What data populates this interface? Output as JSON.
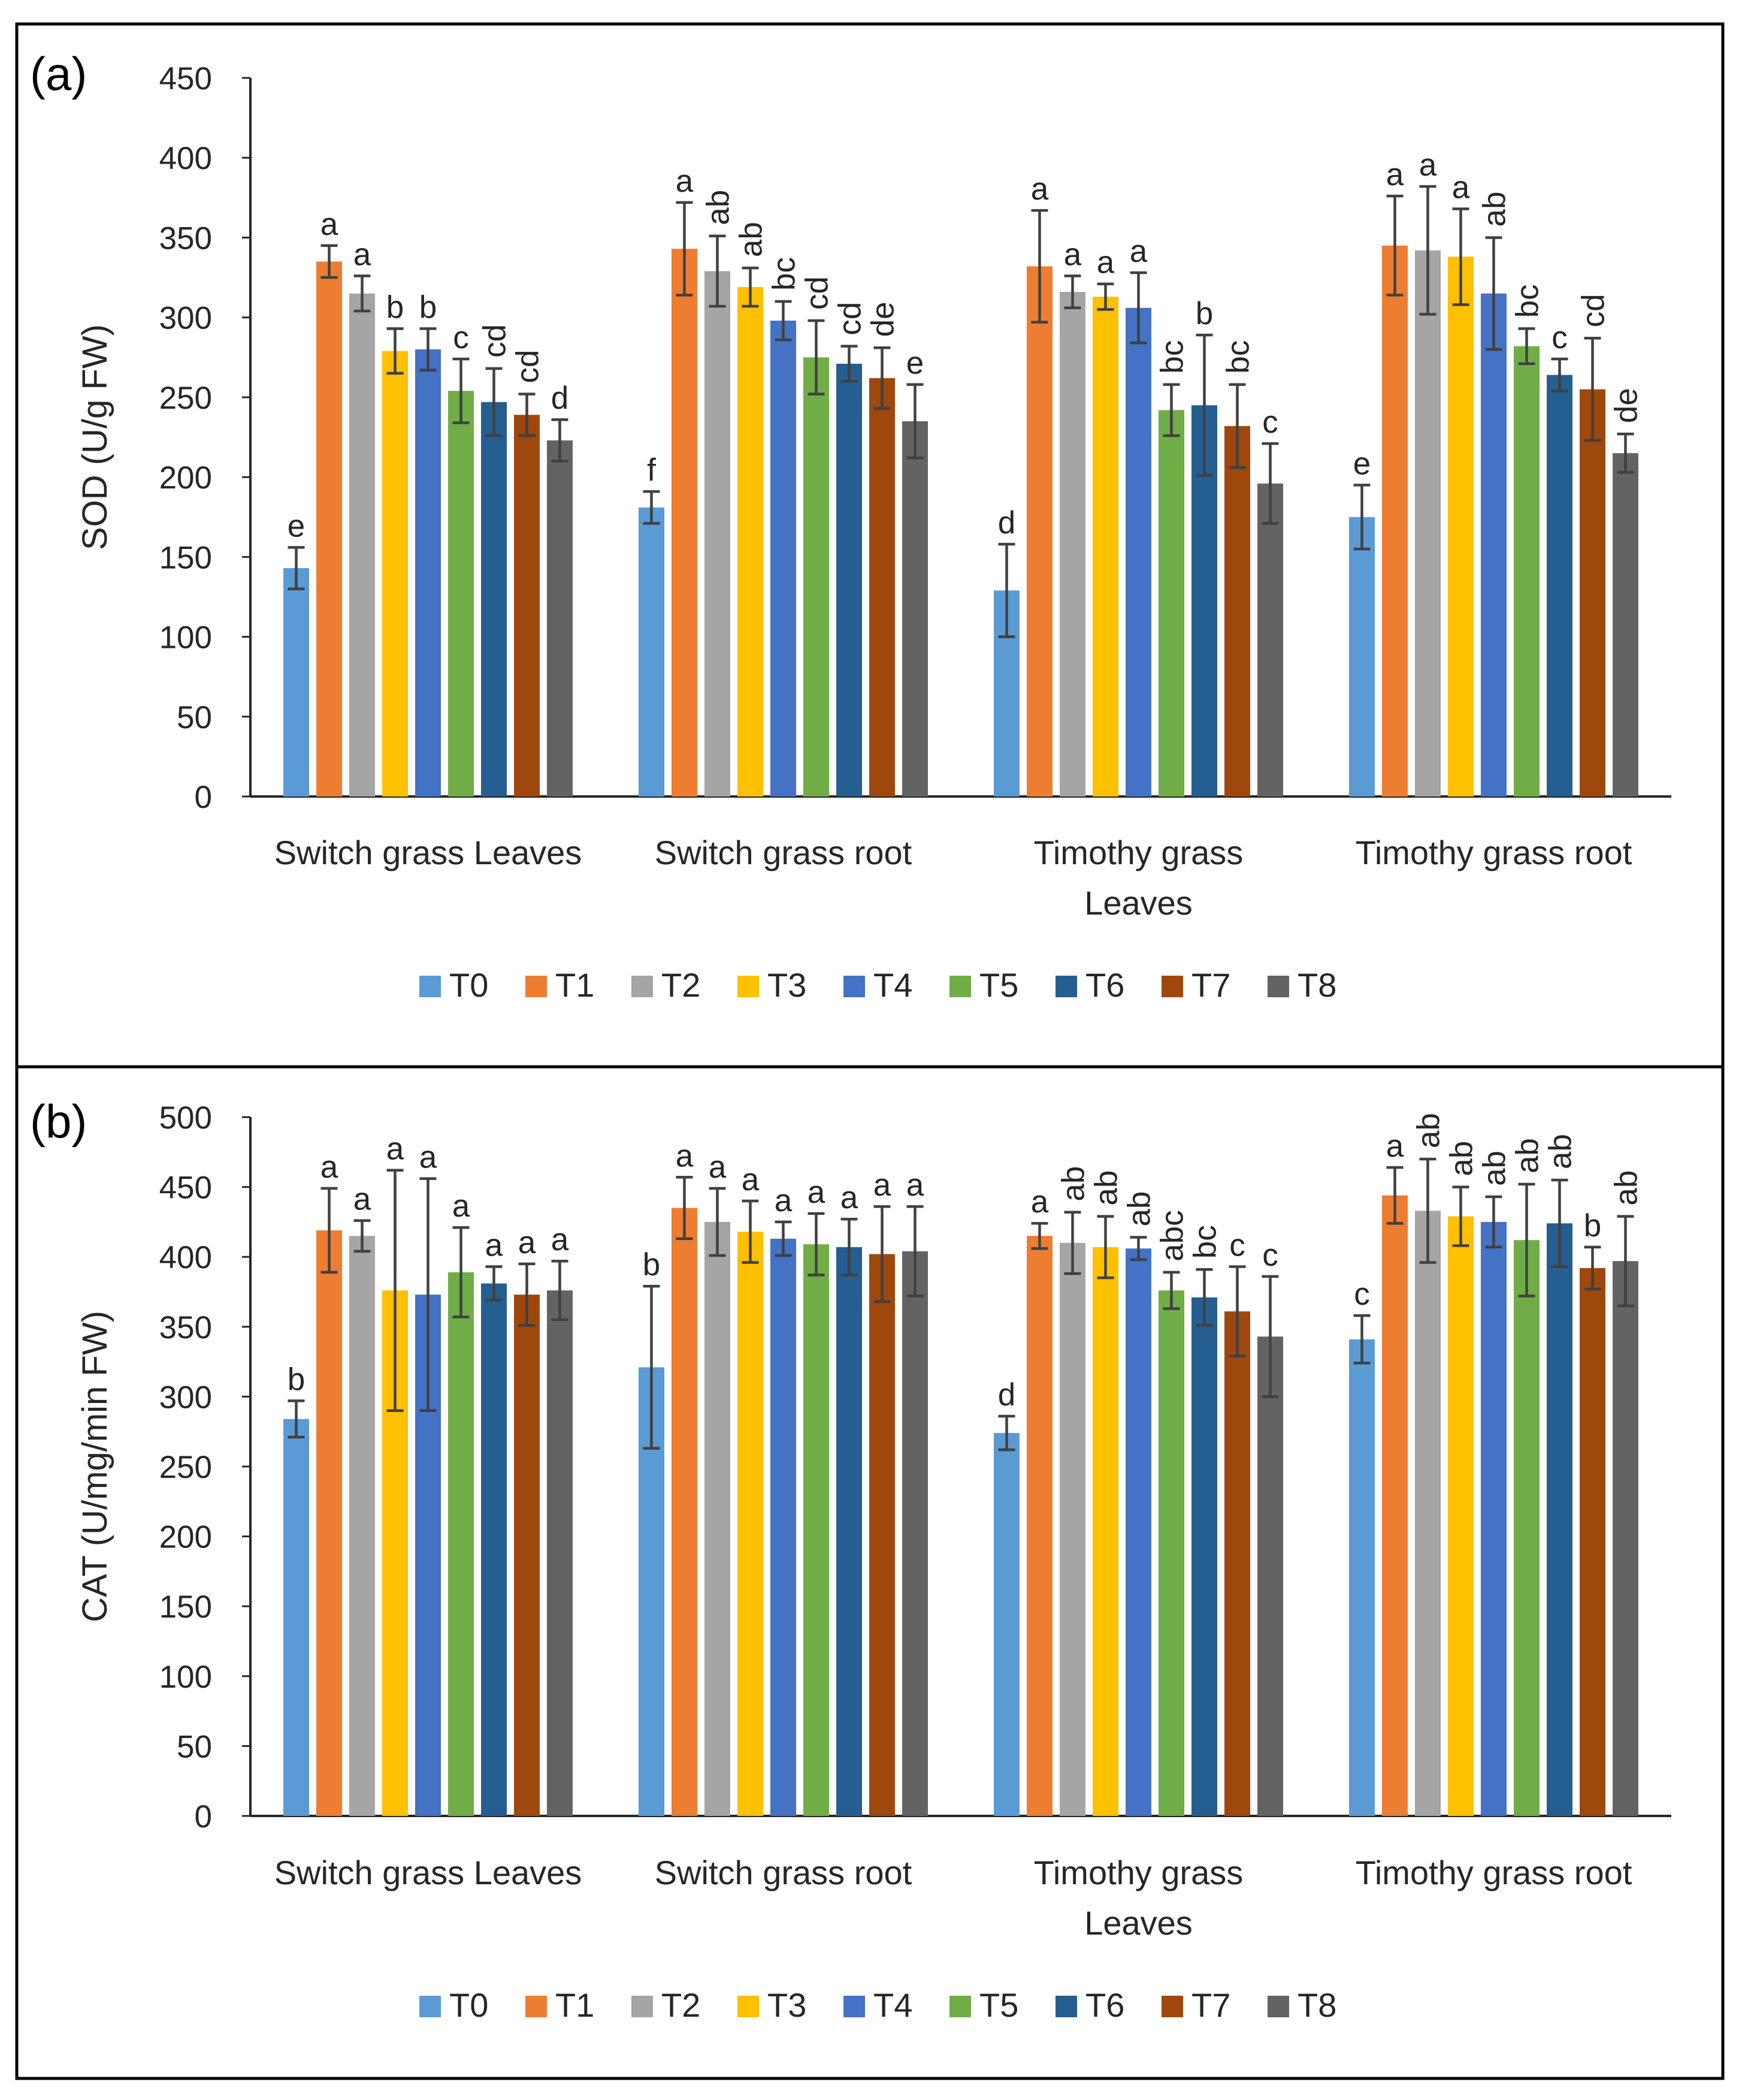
{
  "series_names": [
    "T0",
    "T1",
    "T2",
    "T3",
    "T4",
    "T5",
    "T6",
    "T7",
    "T8"
  ],
  "series_colors": [
    "#5b9bd5",
    "#ed7d31",
    "#a5a5a5",
    "#ffc000",
    "#4472c4",
    "#70ad47",
    "#255e91",
    "#9e480e",
    "#636363"
  ],
  "chart_data": [
    {
      "type": "bar",
      "panel_label": "(a)",
      "ylabel": "SOD (U/g FW)",
      "ylim": [
        0,
        450
      ],
      "yticks": [
        0,
        50,
        100,
        150,
        200,
        250,
        300,
        350,
        400,
        450
      ],
      "categories": [
        [
          "Switch grass Leaves"
        ],
        [
          "Switch grass root"
        ],
        [
          "Timothy grass",
          "Leaves"
        ],
        [
          "Timothy grass root"
        ]
      ],
      "legend_position": "bottom",
      "grid": false,
      "series": [
        {
          "name": "T0",
          "values": [
            143,
            181,
            129,
            175
          ],
          "errors": [
            13,
            10,
            29,
            20
          ],
          "letters": [
            "e",
            "f",
            "d",
            "e"
          ]
        },
        {
          "name": "T1",
          "values": [
            335,
            343,
            332,
            345
          ],
          "errors": [
            10,
            29,
            35,
            31
          ],
          "letters": [
            "a",
            "a",
            "a",
            "a"
          ]
        },
        {
          "name": "T2",
          "values": [
            315,
            329,
            316,
            342
          ],
          "errors": [
            11,
            22,
            10,
            40
          ],
          "letters": [
            "a",
            "ab",
            "a",
            "a"
          ]
        },
        {
          "name": "T3",
          "values": [
            279,
            319,
            313,
            338
          ],
          "errors": [
            14,
            12,
            8,
            30
          ],
          "letters": [
            "b",
            "ab",
            "a",
            "a"
          ]
        },
        {
          "name": "T4",
          "values": [
            280,
            298,
            306,
            315
          ],
          "errors": [
            13,
            12,
            22,
            35
          ],
          "letters": [
            "b",
            "bc",
            "a",
            "ab"
          ]
        },
        {
          "name": "T5",
          "values": [
            254,
            275,
            242,
            282
          ],
          "errors": [
            20,
            23,
            16,
            11
          ],
          "letters": [
            "c",
            "cd",
            "bc",
            "bc"
          ]
        },
        {
          "name": "T6",
          "values": [
            247,
            271,
            245,
            264
          ],
          "errors": [
            21,
            11,
            44,
            10
          ],
          "letters": [
            "cd",
            "cd",
            "b",
            "c"
          ]
        },
        {
          "name": "T7",
          "values": [
            239,
            262,
            232,
            255
          ],
          "errors": [
            13,
            19,
            26,
            32
          ],
          "letters": [
            "cd",
            "de",
            "bc",
            "cd"
          ]
        },
        {
          "name": "T8",
          "values": [
            223,
            235,
            196,
            215
          ],
          "errors": [
            13,
            23,
            25,
            12
          ],
          "letters": [
            "d",
            "e",
            "c",
            "de"
          ]
        }
      ]
    },
    {
      "type": "bar",
      "panel_label": "(b)",
      "ylabel": "CAT (U/mg/min FW)",
      "ylim": [
        0,
        500
      ],
      "yticks": [
        0,
        50,
        100,
        150,
        200,
        250,
        300,
        350,
        400,
        450,
        500
      ],
      "categories": [
        [
          "Switch grass Leaves"
        ],
        [
          "Switch grass root"
        ],
        [
          "Timothy grass",
          "Leaves"
        ],
        [
          "Timothy grass root"
        ]
      ],
      "legend_position": "bottom",
      "grid": false,
      "series": [
        {
          "name": "T0",
          "values": [
            284,
            321,
            274,
            341
          ],
          "errors": [
            13,
            58,
            12,
            17
          ],
          "letters": [
            "b",
            "b",
            "d",
            "c"
          ]
        },
        {
          "name": "T1",
          "values": [
            419,
            435,
            415,
            444
          ],
          "errors": [
            30,
            22,
            9,
            20
          ],
          "letters": [
            "a",
            "a",
            "a",
            "a"
          ]
        },
        {
          "name": "T2",
          "values": [
            415,
            425,
            410,
            433
          ],
          "errors": [
            11,
            24,
            22,
            37
          ],
          "letters": [
            "a",
            "a",
            "ab",
            "ab"
          ]
        },
        {
          "name": "T3",
          "values": [
            376,
            418,
            407,
            429
          ],
          "errors": [
            86,
            22,
            22,
            21
          ],
          "letters": [
            "a",
            "a",
            "ab",
            "ab"
          ]
        },
        {
          "name": "T4",
          "values": [
            373,
            413,
            406,
            425
          ],
          "errors": [
            83,
            12,
            8,
            18
          ],
          "letters": [
            "a",
            "a",
            "ab",
            "ab"
          ]
        },
        {
          "name": "T5",
          "values": [
            389,
            409,
            376,
            412
          ],
          "errors": [
            32,
            22,
            13,
            40
          ],
          "letters": [
            "a",
            "a",
            "abc",
            "ab"
          ]
        },
        {
          "name": "T6",
          "values": [
            381,
            407,
            371,
            424
          ],
          "errors": [
            12,
            20,
            20,
            31
          ],
          "letters": [
            "a",
            "a",
            "bc",
            "ab"
          ]
        },
        {
          "name": "T7",
          "values": [
            373,
            402,
            361,
            392
          ],
          "errors": [
            22,
            34,
            32,
            15
          ],
          "letters": [
            "a",
            "a",
            "c",
            "b"
          ]
        },
        {
          "name": "T8",
          "values": [
            376,
            404,
            343,
            397
          ],
          "errors": [
            21,
            32,
            43,
            32
          ],
          "letters": [
            "a",
            "a",
            "c",
            "ab"
          ]
        }
      ]
    }
  ]
}
